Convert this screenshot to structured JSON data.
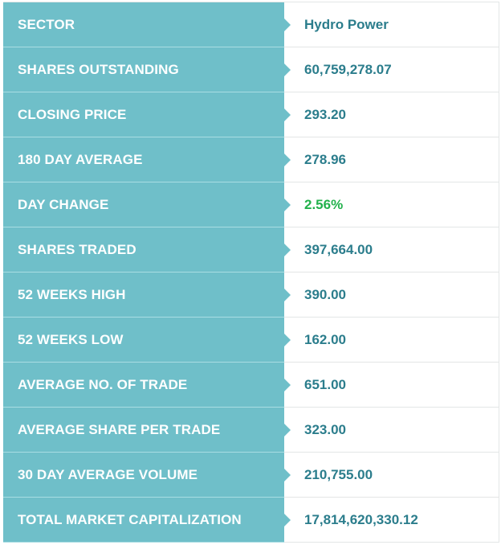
{
  "colors": {
    "label_bg": "#6fbfc9",
    "label_text": "#ffffff",
    "value_text": "#2b7d8c",
    "positive_change": "#22b14c"
  },
  "stats": [
    {
      "label": "SECTOR",
      "value": "Hydro Power"
    },
    {
      "label": "SHARES OUTSTANDING",
      "value": "60,759,278.07"
    },
    {
      "label": "CLOSING PRICE",
      "value": "293.20"
    },
    {
      "label": "180 DAY AVERAGE",
      "value": "278.96"
    },
    {
      "label": "DAY CHANGE",
      "value": "2.56%"
    },
    {
      "label": "SHARES TRADED",
      "value": "397,664.00"
    },
    {
      "label": "52 WEEKS HIGH",
      "value": "390.00"
    },
    {
      "label": "52 WEEKS LOW",
      "value": "162.00"
    },
    {
      "label": "AVERAGE NO. OF TRADE",
      "value": "651.00"
    },
    {
      "label": "AVERAGE SHARE PER TRADE",
      "value": "323.00"
    },
    {
      "label": "30 DAY AVERAGE VOLUME",
      "value": "210,755.00"
    },
    {
      "label": "TOTAL MARKET CAPITALIZATION",
      "value": "17,814,620,330.12"
    }
  ]
}
